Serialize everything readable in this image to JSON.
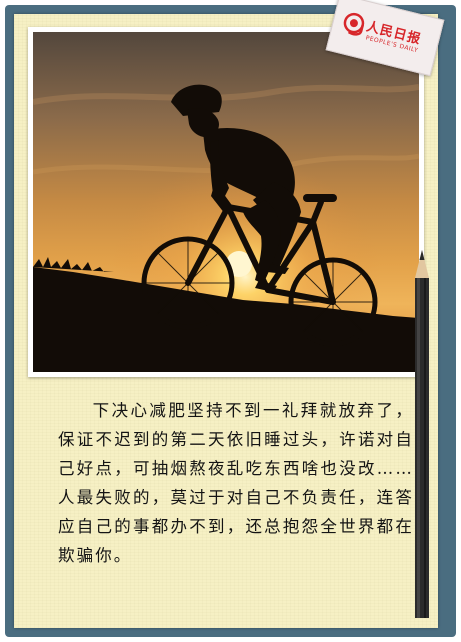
{
  "stamp": {
    "brand": "人民日报",
    "sub": "PEOPLE'S DAILY"
  },
  "body_text": "下决心减肥坚持不到一礼拜就放弃了，保证不迟到的第二天依旧睡过头，许诺对自己好点，可抽烟熬夜乱吃东西啥也没改……人最失败的，莫过于对自己不负责任，连答应自己的事都办不到，还总抱怨全世界都在欺骗你。",
  "colors": {
    "frame": "#4a6d80",
    "paper": "#f6f0c4",
    "brand_red": "#d7262a",
    "sky_top": "#5a4b3f",
    "sun": "#ffd76a"
  }
}
